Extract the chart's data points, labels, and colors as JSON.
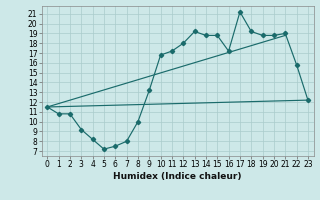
{
  "title": "",
  "xlabel": "Humidex (Indice chaleur)",
  "bg_color": "#cde8e8",
  "line_color": "#1a6b6b",
  "xlim": [
    -0.5,
    23.5
  ],
  "ylim": [
    6.5,
    21.8
  ],
  "yticks": [
    7,
    8,
    9,
    10,
    11,
    12,
    13,
    14,
    15,
    16,
    17,
    18,
    19,
    20,
    21
  ],
  "xticks": [
    0,
    1,
    2,
    3,
    4,
    5,
    6,
    7,
    8,
    9,
    10,
    11,
    12,
    13,
    14,
    15,
    16,
    17,
    18,
    19,
    20,
    21,
    22,
    23
  ],
  "line1_x": [
    0,
    1,
    2,
    3,
    4,
    5,
    6,
    7,
    8,
    9,
    10,
    11,
    12,
    13,
    14,
    15,
    16,
    17,
    18,
    19,
    20,
    21,
    22,
    23
  ],
  "line1_y": [
    11.5,
    10.8,
    10.8,
    9.2,
    8.2,
    7.2,
    7.5,
    8.0,
    10.0,
    13.2,
    16.8,
    17.2,
    18.0,
    19.2,
    18.8,
    18.8,
    17.2,
    21.2,
    19.2,
    18.8,
    18.8,
    19.0,
    15.8,
    12.2
  ],
  "line2_x": [
    0,
    21
  ],
  "line2_y": [
    11.5,
    18.8
  ],
  "line3_x": [
    0,
    23
  ],
  "line3_y": [
    11.5,
    12.2
  ],
  "tick_fontsize": 5.5,
  "xlabel_fontsize": 6.5
}
